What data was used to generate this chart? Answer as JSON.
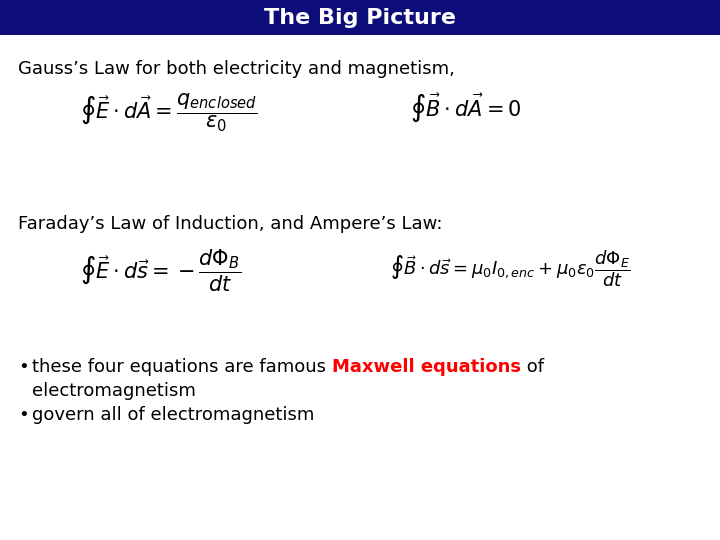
{
  "title": "The Big Picture",
  "title_bg_color": "#0d0d7a",
  "title_text_color": "#ffffff",
  "bg_color": "#ffffff",
  "text_color": "#000000",
  "highlight_color": "#ff0000",
  "gauss_header": "Gauss’s Law for both electricity and magnetism,",
  "faraday_header": "Faraday’s Law of Induction, and Ampere’s Law:",
  "eq1": "$\\oint \\vec{E} \\cdot d\\vec{A} = \\dfrac{q_{enclosed}}{\\varepsilon_0}$",
  "eq2": "$\\oint \\vec{B} \\cdot d\\vec{A} = 0$",
  "eq3": "$\\oint \\vec{E} \\cdot d\\vec{s} = -\\dfrac{d\\Phi_B}{dt}$",
  "eq4": "$\\oint \\vec{B} \\cdot d\\vec{s} = \\mu_0 I_{0,enc} + \\mu_0 \\varepsilon_0 \\dfrac{d\\Phi_E}{dt}$",
  "bullet1_plain": "these four equations are famous ",
  "bullet1_highlight": "Maxwell equations",
  "bullet1_end": " of",
  "bullet1_cont": "electromagnetism",
  "bullet2": "govern all of electromagnetism",
  "title_fontsize": 16,
  "header_fontsize": 13,
  "eq_fontsize": 13,
  "bullet_fontsize": 13
}
